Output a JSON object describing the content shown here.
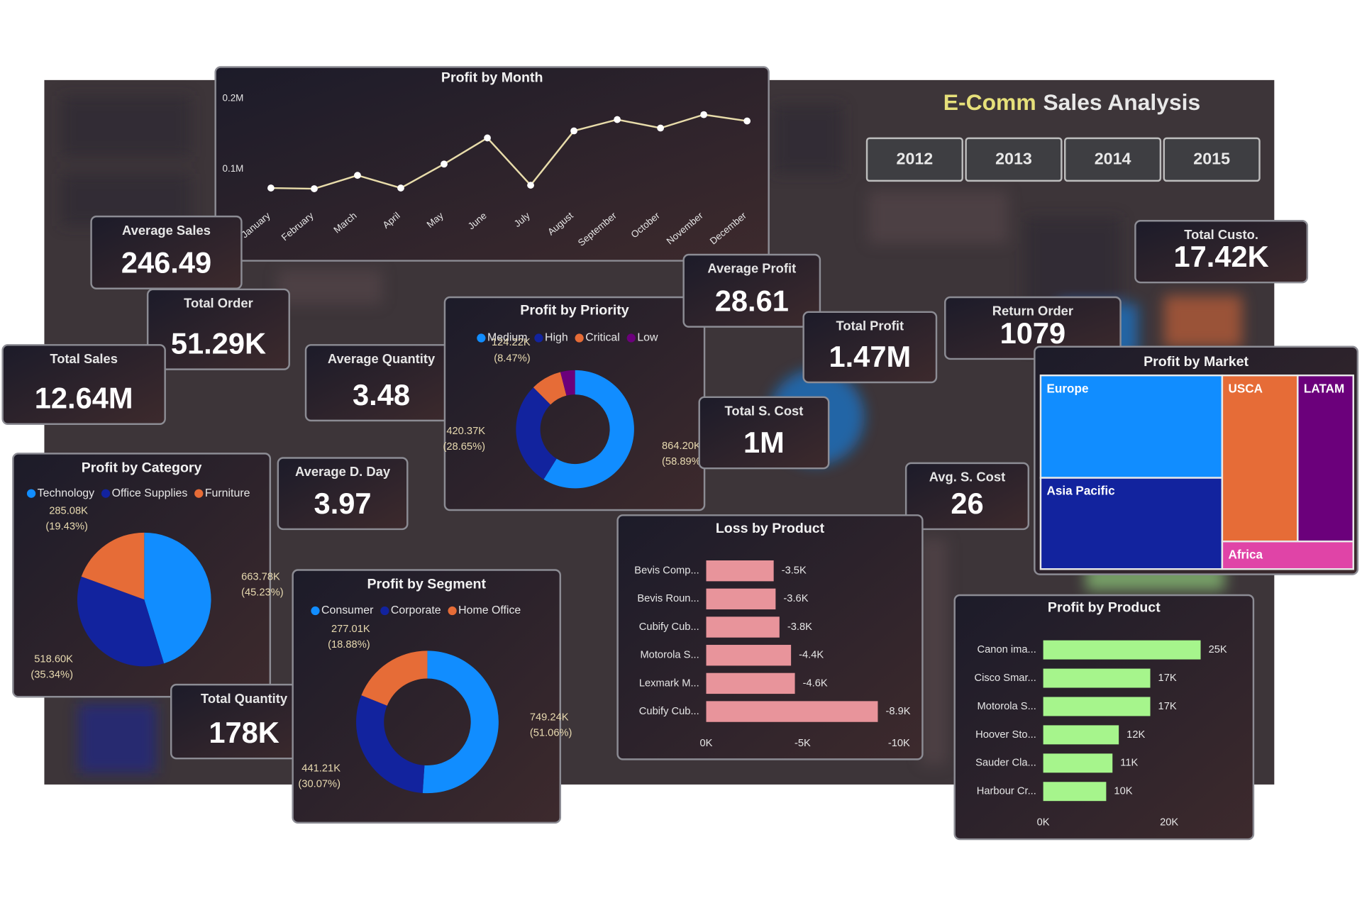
{
  "header": {
    "title_highlight": "E-Comm",
    "title_rest": "Sales Analysis",
    "years": [
      "2012",
      "2013",
      "2014",
      "2015"
    ]
  },
  "kpis": [
    {
      "label": "Average Sales",
      "value": "246.49"
    },
    {
      "label": "Total Order",
      "value": "51.29K"
    },
    {
      "label": "Total Sales",
      "value": "12.64M"
    },
    {
      "label": "Average Quantity",
      "value": "3.48"
    },
    {
      "label": "Average Profit",
      "value": "28.61"
    },
    {
      "label": "Total Profit",
      "value": "1.47M"
    },
    {
      "label": "Total S. Cost",
      "value": "1M"
    },
    {
      "label": "Return Order",
      "value": "1079"
    },
    {
      "label": "Total Custo.",
      "value": "17.42K"
    },
    {
      "label": "Average D. Day",
      "value": "3.97"
    },
    {
      "label": "Avg. S. Cost",
      "value": "26"
    },
    {
      "label": "Total Quantity",
      "value": "178K"
    }
  ],
  "chart_data": [
    {
      "type": "line",
      "title": "Profit by Month",
      "categories": [
        "January",
        "February",
        "March",
        "April",
        "May",
        "June",
        "July",
        "August",
        "September",
        "October",
        "November",
        "December"
      ],
      "values": [
        73000,
        72000,
        91000,
        73000,
        107000,
        144000,
        77000,
        154000,
        170000,
        158000,
        177000,
        168000
      ],
      "color": "#e8dcaa",
      "ylim": [
        50000,
        210000
      ],
      "yticks": [
        {
          "value": 100000,
          "label": "0.1M"
        },
        {
          "value": 200000,
          "label": "0.2M"
        }
      ]
    },
    {
      "type": "donut",
      "title": "Profit by Priority",
      "categories": [
        "Medium",
        "High",
        "Critical",
        "Low"
      ],
      "values": [
        864200,
        420370,
        124220,
        58600
      ],
      "value_labels": [
        "864.20K",
        "420.37K",
        "124.22K",
        null
      ],
      "percent_labels": [
        "(58.89%)",
        "(28.65%)",
        "(8.47%)",
        null
      ],
      "colors": [
        "#118dff",
        "#12239e",
        "#e66c37",
        "#6b007b"
      ]
    },
    {
      "type": "pie",
      "title": "Profit by Category",
      "categories": [
        "Technology",
        "Office Supplies",
        "Furniture"
      ],
      "values": [
        663780,
        518600,
        285080
      ],
      "value_labels": [
        "663.78K",
        "518.60K",
        "285.08K"
      ],
      "percent_labels": [
        "(45.23%)",
        "(35.34%)",
        "(19.43%)"
      ],
      "colors": [
        "#118dff",
        "#12239e",
        "#e66c37"
      ]
    },
    {
      "type": "donut",
      "title": "Profit by Segment",
      "categories": [
        "Consumer",
        "Corporate",
        "Home Office"
      ],
      "values": [
        749240,
        441210,
        277010
      ],
      "value_labels": [
        "749.24K",
        "441.21K",
        "277.01K"
      ],
      "percent_labels": [
        "(51.06%)",
        "(30.07%)",
        "(18.88%)"
      ],
      "colors": [
        "#118dff",
        "#12239e",
        "#e66c37"
      ]
    },
    {
      "type": "bar",
      "orientation": "horizontal",
      "title": "Loss by Product",
      "categories": [
        "Bevis Comp...",
        "Bevis Roun...",
        "Cubify Cub...",
        "Motorola S...",
        "Lexmark M...",
        "Cubify Cub..."
      ],
      "values": [
        -3500,
        -3600,
        -3800,
        -4400,
        -4600,
        -8900
      ],
      "value_labels": [
        "-3.5K",
        "-3.6K",
        "-3.8K",
        "-4.4K",
        "-4.6K",
        "-8.9K"
      ],
      "color": "#e8949b",
      "xlim": [
        0,
        -10000
      ],
      "xticks": [
        {
          "value": 0,
          "label": "0K"
        },
        {
          "value": -5000,
          "label": "-5K"
        },
        {
          "value": -10000,
          "label": "-10K"
        }
      ]
    },
    {
      "type": "bar",
      "orientation": "horizontal",
      "title": "Profit by Product",
      "categories": [
        "Canon ima...",
        "Cisco Smar...",
        "Motorola S...",
        "Hoover Sto...",
        "Sauder Cla...",
        "Harbour Cr..."
      ],
      "values": [
        25000,
        17000,
        17000,
        12000,
        11000,
        10000
      ],
      "value_labels": [
        "25K",
        "17K",
        "17K",
        "12K",
        "11K",
        "10K"
      ],
      "color": "#a6f58c",
      "xlim": [
        0,
        30000
      ],
      "xticks": [
        {
          "value": 0,
          "label": "0K"
        },
        {
          "value": 20000,
          "label": "20K"
        }
      ]
    },
    {
      "type": "treemap",
      "title": "Profit by Market",
      "categories": [
        "Europe",
        "Asia Pacific",
        "USCA",
        "LATAM",
        "Africa"
      ],
      "values": [
        451000,
        402000,
        304000,
        224000,
        88000
      ],
      "colors": [
        "#118dff",
        "#12239e",
        "#e66c37",
        "#6b007b",
        "#e044a7"
      ]
    }
  ]
}
